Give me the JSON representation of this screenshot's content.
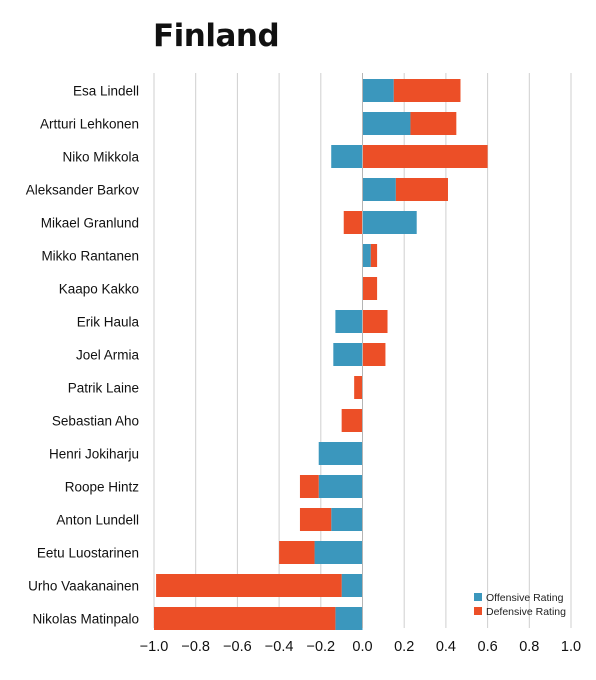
{
  "chart_data": {
    "type": "bar",
    "title": "Finland",
    "xlim": [
      -1.0,
      1.0
    ],
    "x_ticks": [
      "−1.0",
      "−0.8",
      "−0.6",
      "−0.4",
      "−0.2",
      "0.0",
      "0.2",
      "0.4",
      "0.6",
      "0.8",
      "1.0"
    ],
    "x_tick_values": [
      -1.0,
      -0.8,
      -0.6,
      -0.4,
      -0.2,
      0.0,
      0.2,
      0.4,
      0.6,
      0.8,
      1.0
    ],
    "grid": "vertical",
    "legend_position": "bottom-right",
    "categories": [
      "Esa Lindell",
      "Artturi Lehkonen",
      "Niko Mikkola",
      "Aleksander Barkov",
      "Mikael Granlund",
      "Mikko Rantanen",
      "Kaapo Kakko",
      "Erik Haula",
      "Joel Armia",
      "Patrik Laine",
      "Sebastian Aho",
      "Henri Jokiharju",
      "Roope Hintz",
      "Anton Lundell",
      "Eetu Luostarinen",
      "Urho Vaakanainen",
      "Nikolas Matinpalo"
    ],
    "series": [
      {
        "name": "Offensive Rating",
        "color": "#3b97bd",
        "values": [
          0.15,
          0.23,
          -0.15,
          0.16,
          0.26,
          0.04,
          0.0,
          -0.13,
          -0.14,
          0.0,
          0.0,
          -0.21,
          -0.21,
          -0.15,
          -0.23,
          -0.1,
          -0.13
        ]
      },
      {
        "name": "Defensive Rating",
        "color": "#ec4f27",
        "values": [
          0.32,
          0.22,
          0.6,
          0.25,
          -0.09,
          0.03,
          0.07,
          0.12,
          0.11,
          -0.04,
          -0.1,
          0.0,
          -0.09,
          -0.15,
          -0.17,
          -0.89,
          -0.87
        ]
      }
    ]
  }
}
